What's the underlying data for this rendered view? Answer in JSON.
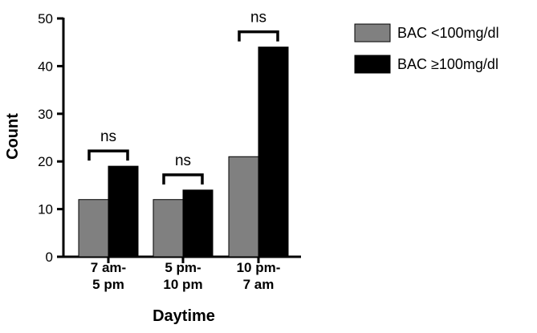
{
  "chart_data": {
    "type": "bar",
    "categories": [
      [
        "7 am-",
        "5 pm"
      ],
      [
        "5 pm-",
        "10 pm"
      ],
      [
        "10 pm-",
        "7 am"
      ]
    ],
    "series": [
      {
        "name": "BAC <100mg/dl",
        "values": [
          12,
          12,
          21
        ],
        "color": "#808080"
      },
      {
        "name": "BAC ≥100mg/dl",
        "values": [
          19,
          14,
          44
        ],
        "color": "#000000"
      }
    ],
    "annotations": [
      "ns",
      "ns",
      "ns"
    ],
    "xlabel": "Daytime",
    "ylabel": "Count",
    "ylim": [
      0,
      50
    ],
    "yticks": [
      0,
      10,
      20,
      30,
      40,
      50
    ],
    "grid": false,
    "legend_position": "top-right"
  }
}
